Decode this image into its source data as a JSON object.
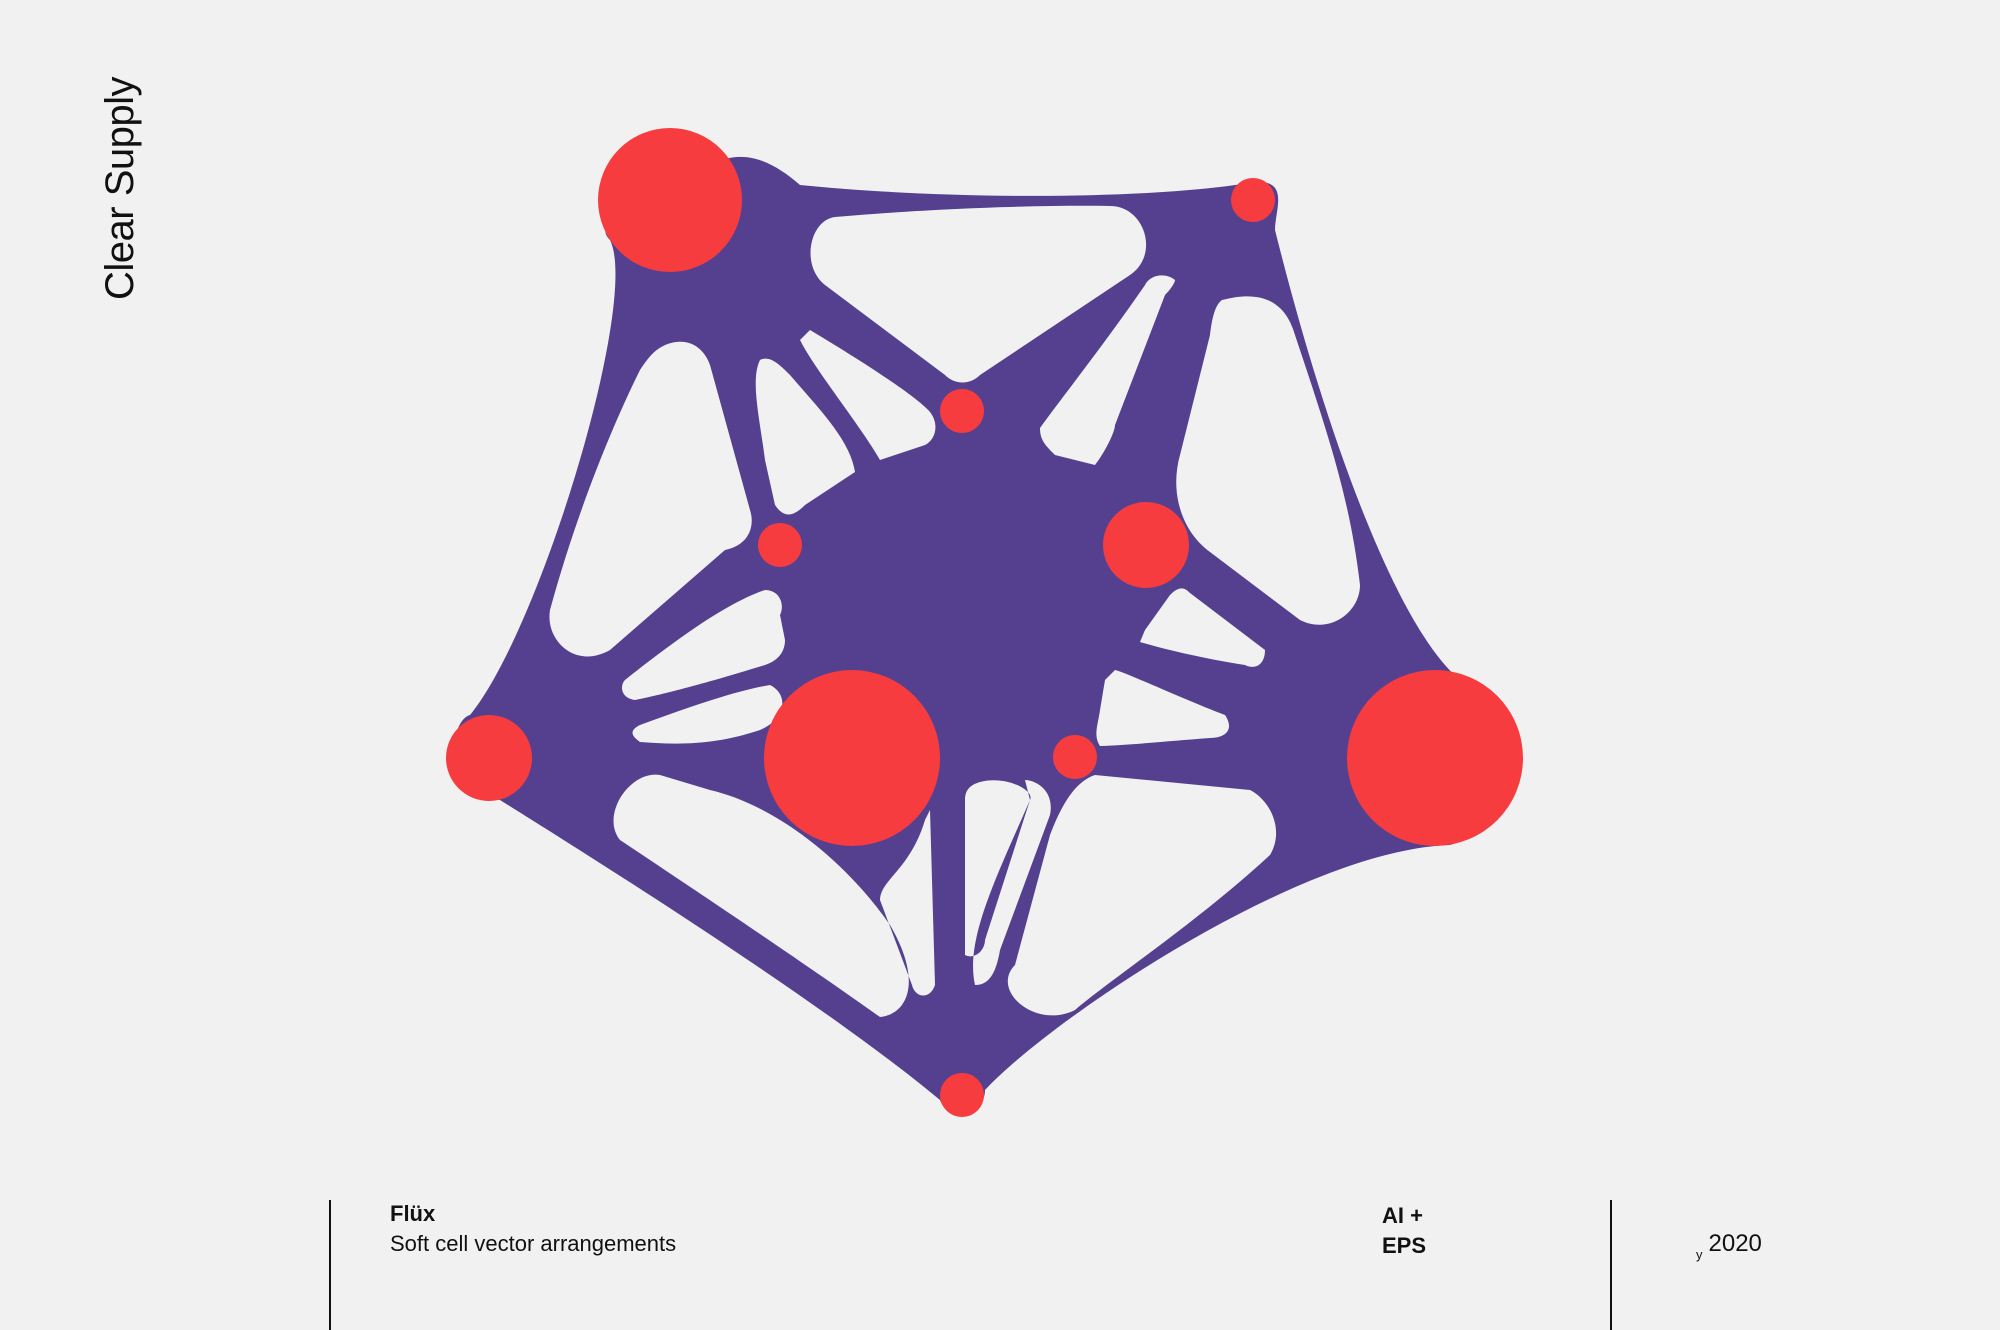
{
  "brand": "Clear Supply",
  "product": {
    "name": "Flüx",
    "description": "Soft cell vector arrangements"
  },
  "formats": [
    "AI +",
    "EPS"
  ],
  "year_symbol": "y",
  "year": "2020",
  "colors": {
    "background": "#f1f1f1",
    "cell": "#554090",
    "node": "#f73c3f",
    "text": "#111111"
  }
}
